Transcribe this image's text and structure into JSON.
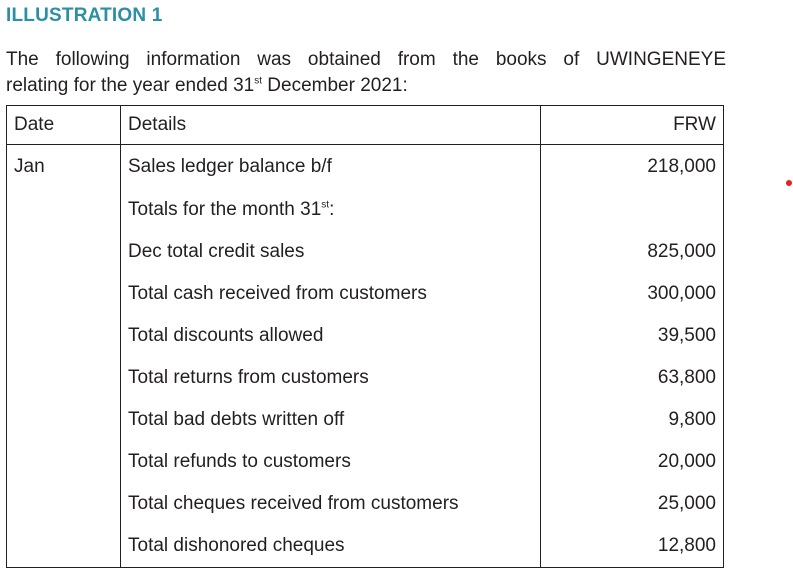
{
  "heading": "ILLUSTRATION 1",
  "intro": {
    "line1": "The following information was obtained from the books of UWINGENEYE",
    "line2_before": "relating for the year ended 31",
    "line2_sup": "st",
    "line2_after": " December 2021:"
  },
  "table": {
    "headers": {
      "date": "Date",
      "details": "Details",
      "amount": "FRW"
    },
    "rows": [
      {
        "date": "Jan",
        "details": "Sales ledger balance b/f",
        "amount": "218,000"
      },
      {
        "date": "",
        "details_before": "Totals for the month 31",
        "details_sup": "st",
        "details_after": ":",
        "amount": ""
      },
      {
        "date": "",
        "details": "Dec total credit sales",
        "amount": "825,000"
      },
      {
        "date": "",
        "details": "Total cash received from customers",
        "amount": "300,000"
      },
      {
        "date": "",
        "details": "Total discounts allowed",
        "amount": "39,500"
      },
      {
        "date": "",
        "details": "Total returns from customers",
        "amount": "63,800"
      },
      {
        "date": "",
        "details": "Total bad debts written off",
        "amount": "9,800"
      },
      {
        "date": "",
        "details": "Total refunds to customers",
        "amount": "20,000"
      },
      {
        "date": "",
        "details": "Total cheques received from customers",
        "amount": "25,000"
      },
      {
        "date": "",
        "details": "Total dishonored cheques",
        "amount": "12,800"
      }
    ]
  },
  "colors": {
    "heading": "#2b8fa6",
    "marker": "#e3221b"
  }
}
